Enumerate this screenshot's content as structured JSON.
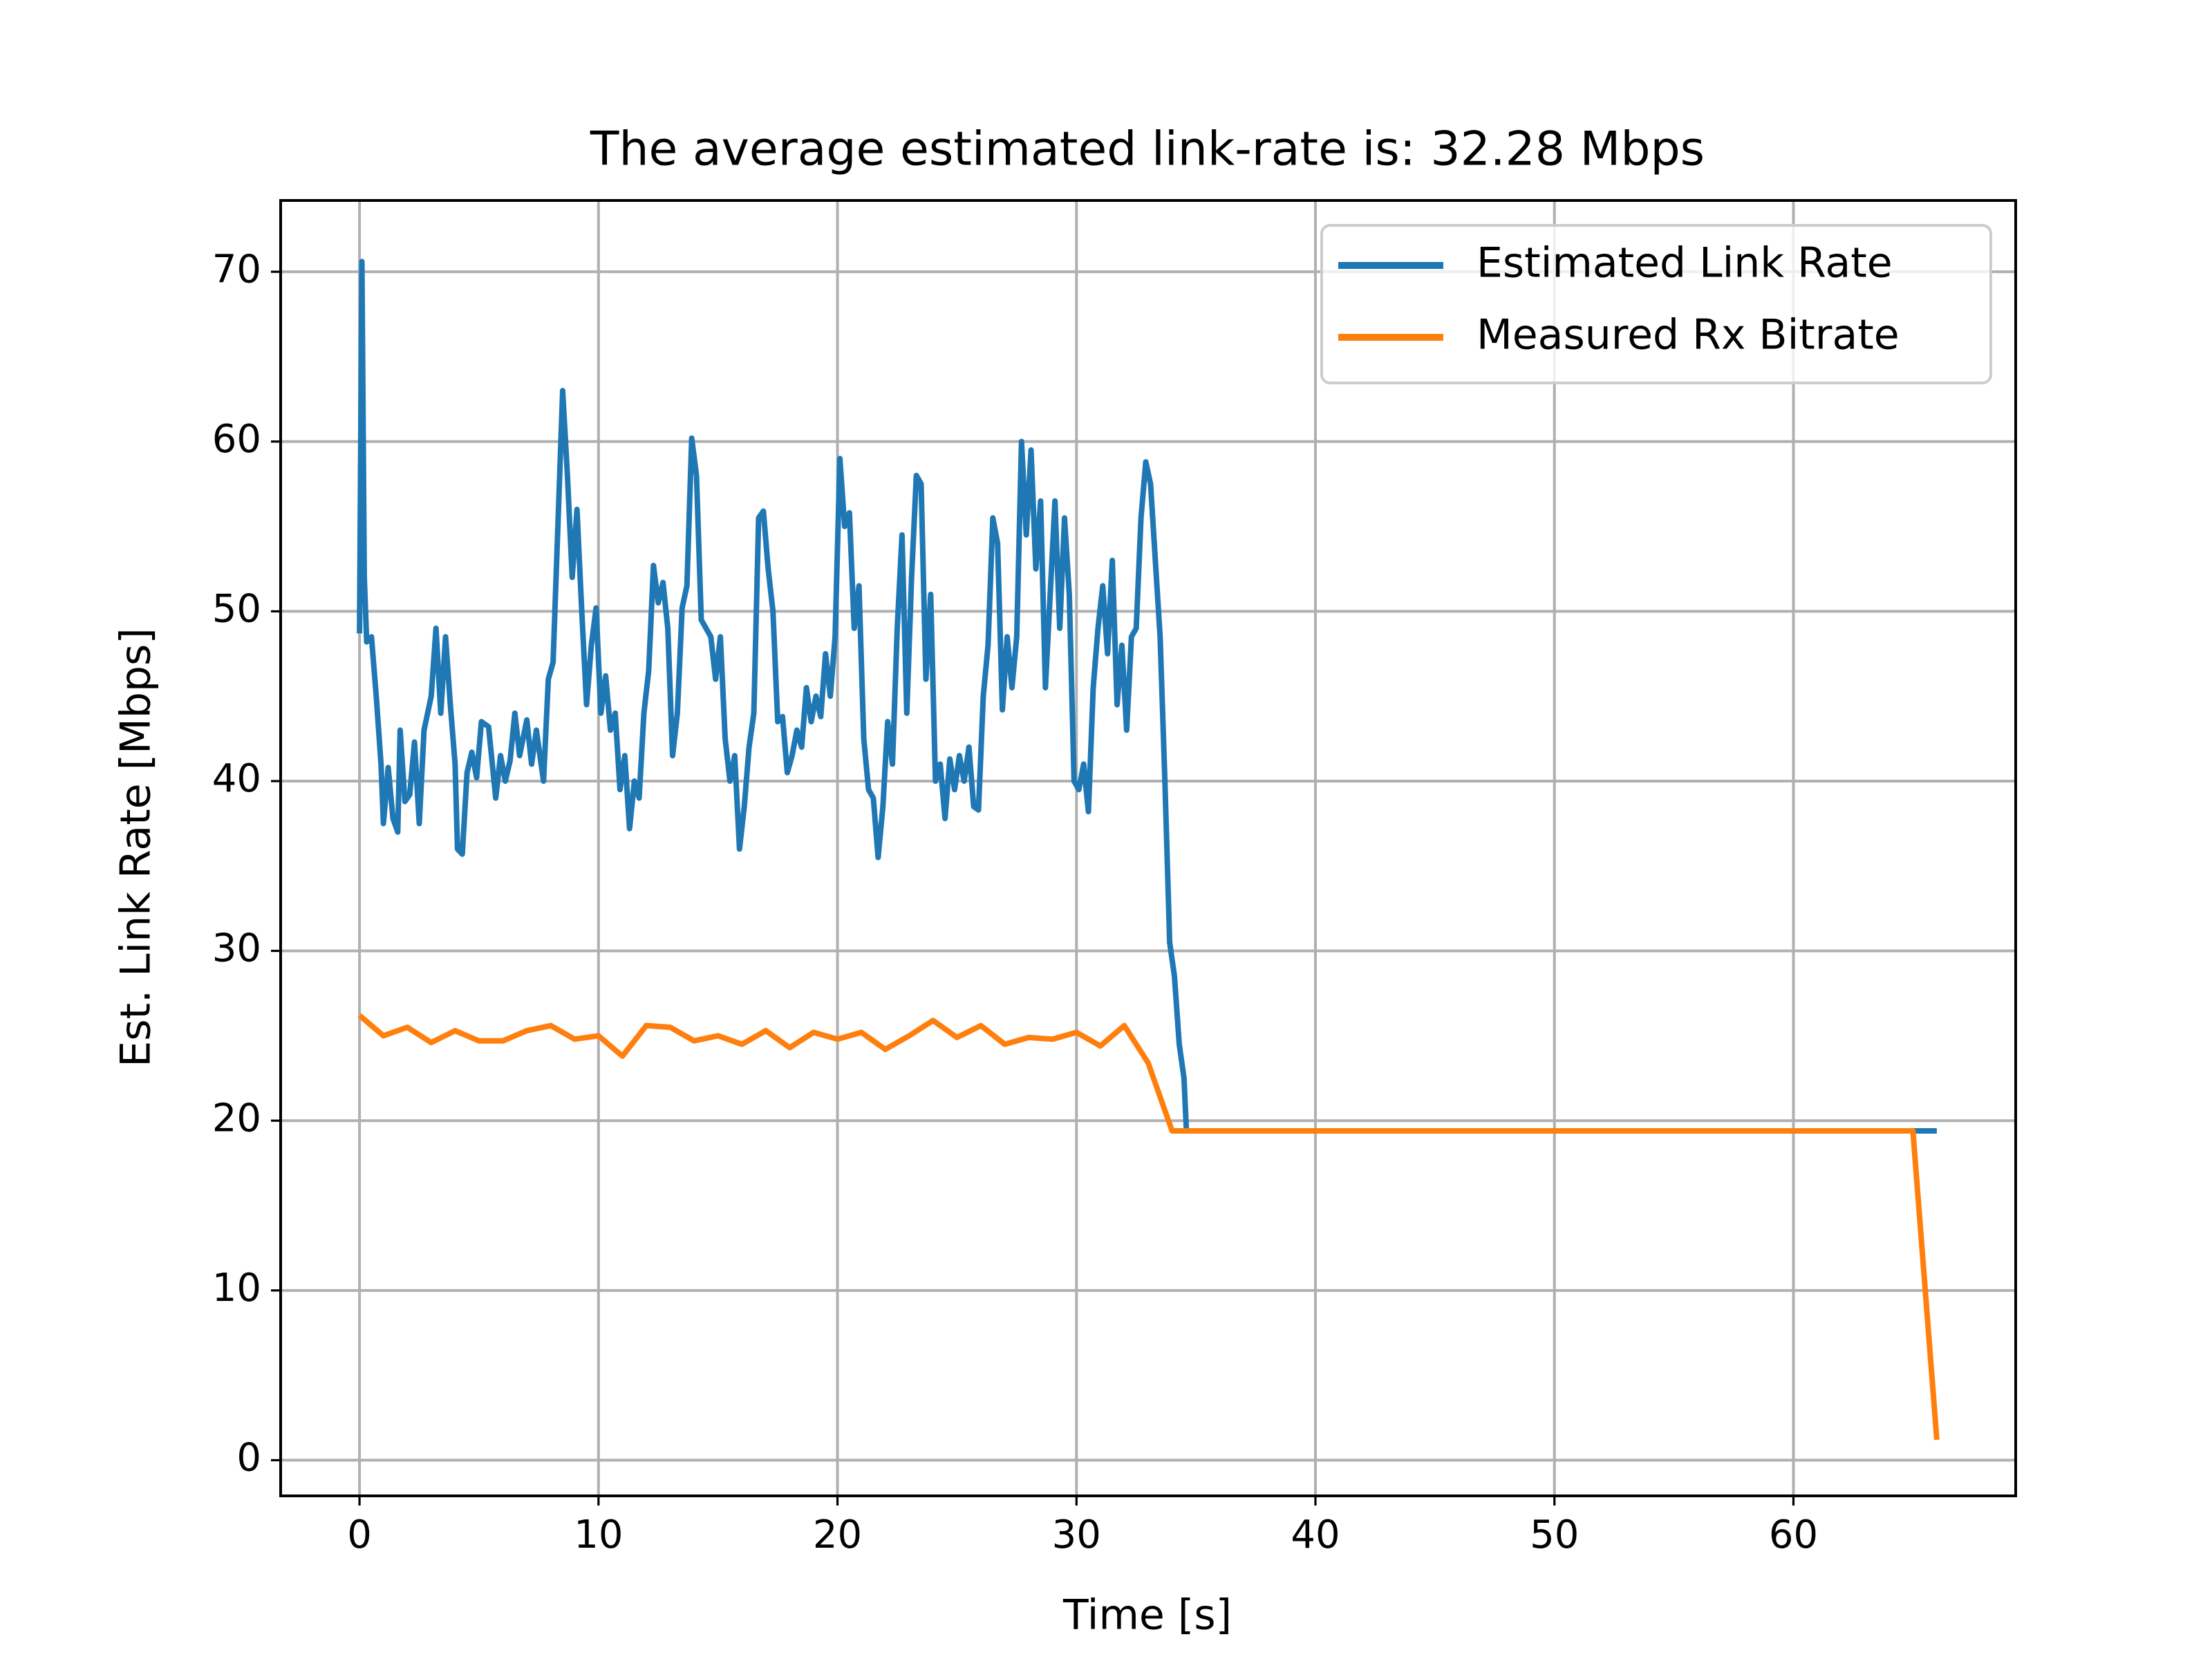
{
  "chart_data": {
    "type": "line",
    "title": "The average estimated link-rate is: 32.28 Mbps",
    "xlabel": "Time [s]",
    "ylabel": "Est. Link Rate [Mbps]",
    "xlim": [
      -3.3,
      69.3
    ],
    "ylim": [
      -2.1,
      74.2
    ],
    "xticks": [
      0,
      10,
      20,
      30,
      40,
      50,
      60
    ],
    "yticks": [
      0,
      10,
      20,
      30,
      40,
      50,
      60,
      70
    ],
    "grid": true,
    "legend": "upper right",
    "series": [
      {
        "name": "Estimated Link Rate",
        "color": "#1f77b4",
        "x": [
          0,
          0.1,
          0.2,
          0.3,
          0.5,
          0.7,
          0.9,
          1.0,
          1.2,
          1.4,
          1.6,
          1.7,
          1.9,
          2.1,
          2.3,
          2.5,
          2.7,
          3.0,
          3.2,
          3.4,
          3.6,
          3.8,
          4.0,
          4.1,
          4.3,
          4.5,
          4.7,
          4.9,
          5.1,
          5.4,
          5.7,
          5.9,
          6.1,
          6.3,
          6.5,
          6.7,
          7.0,
          7.2,
          7.4,
          7.7,
          7.9,
          8.1,
          8.3,
          8.5,
          8.7,
          8.9,
          9.1,
          9.3,
          9.5,
          9.7,
          9.9,
          10.1,
          10.3,
          10.5,
          10.7,
          10.9,
          11.1,
          11.3,
          11.5,
          11.7,
          11.9,
          12.1,
          12.3,
          12.5,
          12.7,
          12.9,
          13.1,
          13.3,
          13.5,
          13.7,
          13.9,
          14.1,
          14.3,
          14.5,
          14.7,
          14.9,
          15.1,
          15.3,
          15.5,
          15.7,
          15.9,
          16.1,
          16.3,
          16.5,
          16.7,
          16.9,
          17.1,
          17.3,
          17.5,
          17.7,
          17.9,
          18.1,
          18.3,
          18.5,
          18.7,
          18.9,
          19.1,
          19.3,
          19.5,
          19.7,
          19.9,
          20.1,
          20.3,
          20.5,
          20.7,
          20.9,
          21.1,
          21.3,
          21.5,
          21.7,
          21.9,
          22.1,
          22.3,
          22.5,
          22.7,
          22.9,
          23.1,
          23.3,
          23.5,
          23.7,
          23.9,
          24.1,
          24.3,
          24.5,
          24.7,
          24.9,
          25.1,
          25.3,
          25.5,
          25.7,
          25.9,
          26.1,
          26.3,
          26.5,
          26.7,
          26.9,
          27.1,
          27.3,
          27.5,
          27.7,
          27.9,
          28.1,
          28.3,
          28.5,
          28.7,
          28.9,
          29.1,
          29.3,
          29.5,
          29.7,
          29.9,
          30.1,
          30.3,
          30.5,
          30.7,
          30.9,
          31.1,
          31.3,
          31.5,
          31.7,
          31.9,
          32.1,
          32.3,
          32.5,
          32.7,
          32.9,
          33.1,
          33.3,
          33.5,
          33.7,
          33.9,
          34.1,
          34.3,
          34.5,
          34.6,
          66
        ],
        "values": [
          48.7,
          70.6,
          52,
          48.2,
          48.5,
          45,
          41,
          37.5,
          40.8,
          37.8,
          37.0,
          43.0,
          38.8,
          39.2,
          42.3,
          37.5,
          43.0,
          45,
          49,
          44,
          48.5,
          44.5,
          41,
          36,
          35.7,
          40.5,
          41.7,
          40.2,
          43.5,
          43.2,
          39.0,
          41.5,
          40,
          41.2,
          44,
          41.5,
          43.6,
          41.0,
          43.0,
          40,
          46,
          47,
          55,
          63,
          58,
          52,
          56,
          50,
          44.5,
          48,
          50.2,
          44,
          46.2,
          43,
          44,
          39.5,
          41.5,
          37.2,
          40,
          39,
          44,
          46.5,
          52.7,
          50.5,
          51.7,
          49,
          41.5,
          44,
          50.2,
          51.5,
          60.2,
          58,
          49.5,
          49,
          48.5,
          46,
          48.5,
          42.5,
          40,
          41.5,
          36,
          38.5,
          42,
          44,
          55.5,
          55.9,
          52.5,
          50,
          43.5,
          43.8,
          40.5,
          41.5,
          43,
          42,
          45.5,
          43.5,
          45.0,
          43.8,
          47.5,
          45,
          48.5,
          59,
          55,
          55.8,
          49,
          51.5,
          42.5,
          39.5,
          39,
          35.5,
          38.5,
          43.5,
          41,
          49,
          54.5,
          44,
          52,
          58,
          57.5,
          46,
          51,
          40,
          41,
          37.8,
          41.3,
          39.5,
          41.5,
          40,
          42,
          38.5,
          38.3,
          45,
          48,
          55.5,
          54,
          44.2,
          48.5,
          45.5,
          48.5,
          60,
          54.5,
          59.5,
          52.5,
          56.5,
          45.5,
          51,
          56.5,
          49,
          55.5,
          51,
          40,
          39.5,
          41.0,
          38.2,
          45.5,
          49,
          51.5,
          47.5,
          53,
          44.5,
          48,
          43,
          48.5,
          49,
          55.5,
          58.8,
          57.5,
          53,
          48.5,
          40,
          30.5,
          28.5,
          24.5,
          22.5,
          19.4,
          19.4
        ]
      },
      {
        "name": "Measured Rx Bitrate",
        "color": "#ff7f0e",
        "x": [
          0,
          1,
          2,
          3,
          4,
          5,
          6,
          7,
          8,
          9,
          10,
          11,
          12,
          13,
          14,
          15,
          16,
          17,
          18,
          19,
          20,
          21,
          22,
          23,
          24,
          25,
          26,
          27,
          28,
          29,
          30,
          31,
          32,
          33,
          34,
          65,
          66
        ],
        "values": [
          26.2,
          25.0,
          25.5,
          24.6,
          25.3,
          24.7,
          24.7,
          25.3,
          25.6,
          24.8,
          25.0,
          23.8,
          25.6,
          25.5,
          24.7,
          25.0,
          24.5,
          25.3,
          24.3,
          25.2,
          24.8,
          25.2,
          24.2,
          25.0,
          25.9,
          24.9,
          25.6,
          24.5,
          24.9,
          24.8,
          25.2,
          24.4,
          25.6,
          23.4,
          19.4,
          19.4,
          1.2
        ]
      }
    ]
  }
}
